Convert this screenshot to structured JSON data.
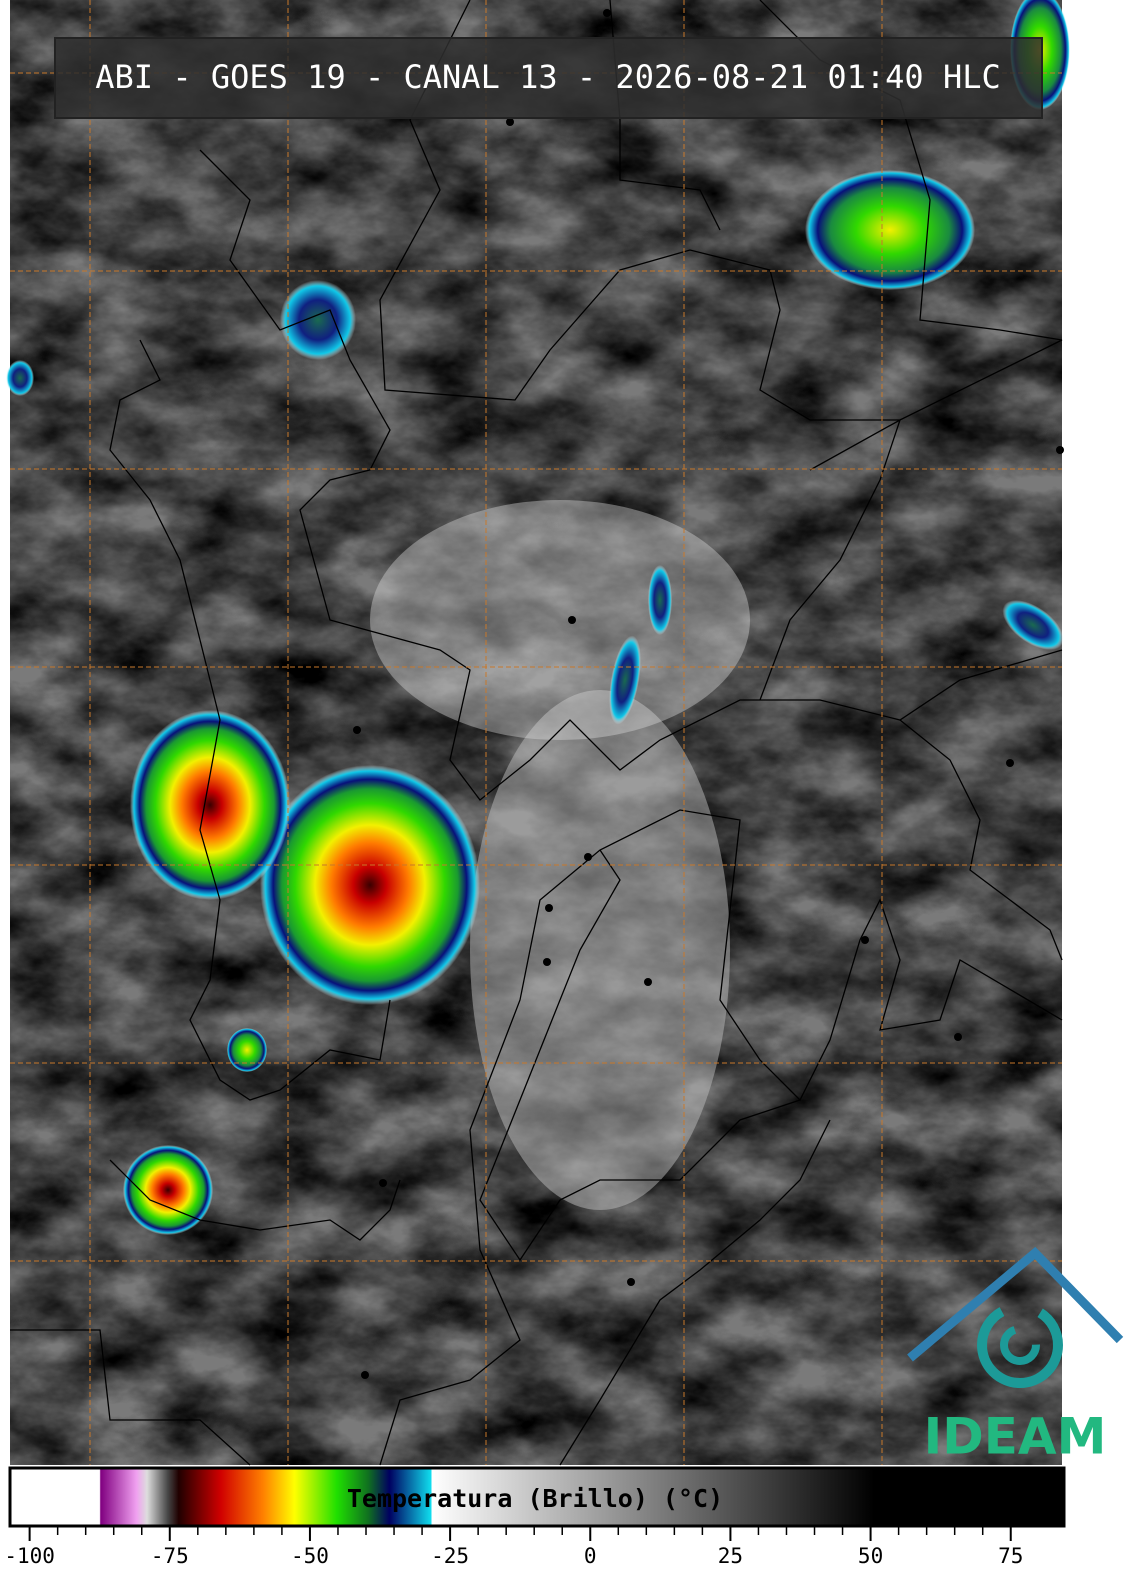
{
  "header": {
    "title": "ABI - GOES 19 - CANAL 13 - 2026-08-21 01:40 HLC"
  },
  "colorbar": {
    "label": "Temperatura (Brillo) (°C)",
    "range": [
      -103.5,
      84.5
    ],
    "ticks": [
      -100,
      -75,
      -50,
      -25,
      0,
      25,
      50,
      75
    ]
  },
  "logo": {
    "text": "IDEAM"
  }
}
